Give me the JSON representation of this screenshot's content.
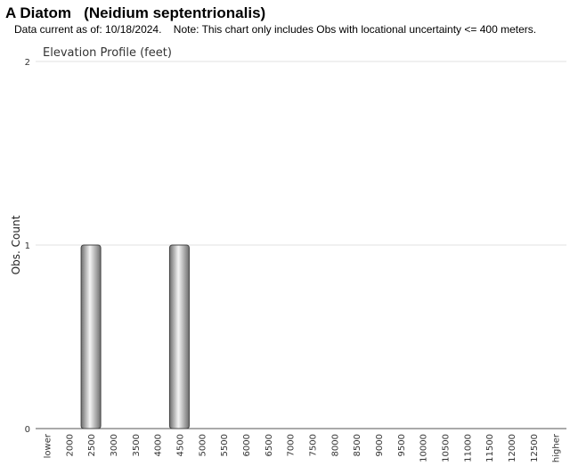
{
  "header": {
    "title": "A Diatom   (Neidium septentrionalis)",
    "subtitle": "Data current as of: 10/18/2024.    Note: This chart only includes Obs with locational uncertainty <= 400 meters."
  },
  "chart_data": {
    "type": "bar",
    "title": "Elevation Profile (feet)",
    "xlabel": "",
    "ylabel": "Obs. Count",
    "categories": [
      "lower",
      "2000",
      "2500",
      "3000",
      "3500",
      "4000",
      "4500",
      "5000",
      "5500",
      "6000",
      "6500",
      "7000",
      "7500",
      "8000",
      "8500",
      "9000",
      "9500",
      "10000",
      "10500",
      "11000",
      "11500",
      "12000",
      "12500",
      "higher"
    ],
    "values": [
      0,
      0,
      1,
      0,
      0,
      0,
      1,
      0,
      0,
      0,
      0,
      0,
      0,
      0,
      0,
      0,
      0,
      0,
      0,
      0,
      0,
      0,
      0,
      0
    ],
    "ylim": [
      0,
      2
    ],
    "yticks": [
      "0",
      "1",
      "2"
    ],
    "grid": true,
    "colors": {
      "bar_light": "#f4f4f4",
      "bar_dark": "#6e6e6e",
      "bar_stroke": "#444444",
      "grid": "#e2e2e2",
      "axis": "#555555"
    }
  }
}
